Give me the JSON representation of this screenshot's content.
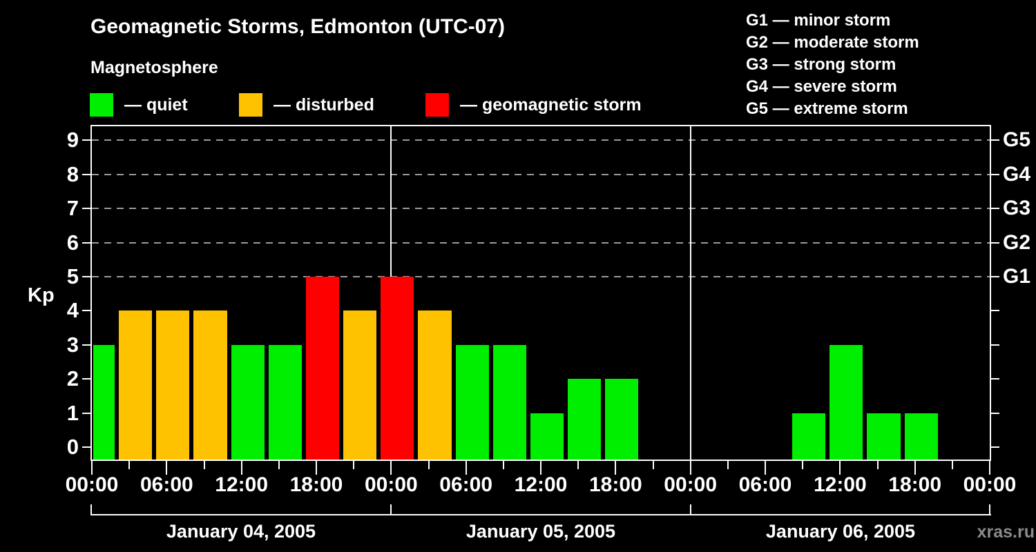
{
  "chart_data": {
    "type": "bar",
    "title": "Geomagnetic Storms, Edmonton (UTC-07)",
    "subtitle": "Magnetosphere",
    "ylabel": "Kp",
    "ylim": [
      0,
      9.4
    ],
    "y_ticks": [
      0,
      1,
      2,
      3,
      4,
      5,
      6,
      7,
      8,
      9
    ],
    "x_unit": "hours since Jan 04 00:00 local time",
    "x_hours_range": [
      0,
      72
    ],
    "x_tick_interval_hours": 6,
    "minor_tick_interval_hours": 3,
    "x_tick_labels": [
      "00:00",
      "06:00",
      "12:00",
      "18:00",
      "00:00",
      "06:00",
      "12:00",
      "18:00",
      "00:00",
      "06:00",
      "12:00",
      "18:00",
      "00:00"
    ],
    "dashed_gridlines_kp": [
      5,
      6,
      7,
      8,
      9
    ],
    "day_boundaries_hours": [
      24,
      48
    ],
    "days": [
      {
        "label": "January 04, 2005"
      },
      {
        "label": "January 05, 2005"
      },
      {
        "label": "January 06, 2005"
      }
    ],
    "status_colors": {
      "quiet": "#00ee00",
      "disturbed": "#ffc200",
      "storm": "#ff0000"
    },
    "legend": [
      {
        "status": "quiet",
        "label": "— quiet"
      },
      {
        "status": "disturbed",
        "label": "— disturbed"
      },
      {
        "status": "storm",
        "label": "— geomagnetic storm"
      }
    ],
    "g_legend": [
      "G1 — minor storm",
      "G2 — moderate storm",
      "G3 — strong storm",
      "G4 — severe storm",
      "G5 — extreme storm"
    ],
    "right_axis_labels": [
      {
        "text": "G1",
        "kp": 5
      },
      {
        "text": "G2",
        "kp": 6
      },
      {
        "text": "G3",
        "kp": 7
      },
      {
        "text": "G4",
        "kp": 8
      },
      {
        "text": "G5",
        "kp": 9
      }
    ],
    "bars": [
      {
        "start": 0,
        "end": 2,
        "kp": 3,
        "status": "quiet"
      },
      {
        "start": 2,
        "end": 5,
        "kp": 4,
        "status": "disturbed"
      },
      {
        "start": 5,
        "end": 8,
        "kp": 4,
        "status": "disturbed"
      },
      {
        "start": 8,
        "end": 11,
        "kp": 4,
        "status": "disturbed"
      },
      {
        "start": 11,
        "end": 14,
        "kp": 3,
        "status": "quiet"
      },
      {
        "start": 14,
        "end": 17,
        "kp": 3,
        "status": "quiet"
      },
      {
        "start": 17,
        "end": 20,
        "kp": 5,
        "status": "storm"
      },
      {
        "start": 20,
        "end": 23,
        "kp": 4,
        "status": "disturbed"
      },
      {
        "start": 23,
        "end": 26,
        "kp": 5,
        "status": "storm"
      },
      {
        "start": 26,
        "end": 29,
        "kp": 4,
        "status": "disturbed"
      },
      {
        "start": 29,
        "end": 32,
        "kp": 3,
        "status": "quiet"
      },
      {
        "start": 32,
        "end": 35,
        "kp": 3,
        "status": "quiet"
      },
      {
        "start": 35,
        "end": 38,
        "kp": 1,
        "status": "quiet"
      },
      {
        "start": 38,
        "end": 41,
        "kp": 2,
        "status": "quiet"
      },
      {
        "start": 41,
        "end": 44,
        "kp": 2,
        "status": "quiet"
      },
      {
        "start": 56,
        "end": 59,
        "kp": 1,
        "status": "quiet"
      },
      {
        "start": 59,
        "end": 62,
        "kp": 3,
        "status": "quiet"
      },
      {
        "start": 62,
        "end": 65,
        "kp": 1,
        "status": "quiet"
      },
      {
        "start": 65,
        "end": 68,
        "kp": 1,
        "status": "quiet"
      }
    ],
    "grid_color": "#9c9c9c",
    "watermark": "xras.ru"
  }
}
